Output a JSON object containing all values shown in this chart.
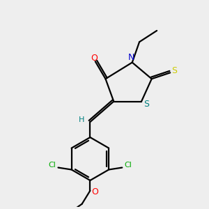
{
  "bg_color": "#eeeeee",
  "bond_color": "#000000",
  "atom_colors": {
    "O": "#ff0000",
    "N": "#0000cc",
    "S_thioxo": "#cccc00",
    "S_ring": "#008080",
    "Cl": "#00aa00",
    "O_ether": "#ff0000",
    "H": "#008080"
  },
  "lw": 1.6,
  "fs": 8.0
}
